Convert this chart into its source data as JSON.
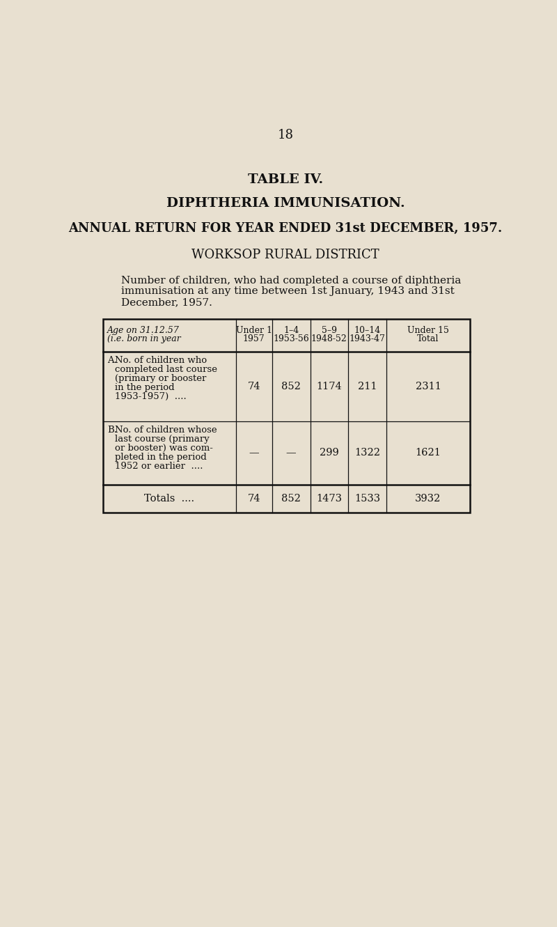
{
  "page_number": "18",
  "title1": "TABLE IV.",
  "title2": "DIPHTHERIA IMMUNISATION.",
  "title3": "ANNUAL RETURN FOR YEAR ENDED 31st DECEMBER, 1957.",
  "title4": "WORKSOP RURAL DISTRICT",
  "intro_line1": "Number of children, who had completed a course of diphtheria",
  "intro_line2": "immunisation at any time between 1st January, 1943 and 31st",
  "intro_line3": "December, 1957.",
  "bg_color": "#e8e0d0",
  "text_color": "#111111",
  "row_A_label": "A.",
  "row_A_lines": [
    "No. of children who",
    "completed last course",
    "(primary or booster",
    "in the period",
    "1953-1957)"
  ],
  "row_A_dots": "....",
  "row_A_values": [
    "74",
    "852",
    "1174",
    "211",
    "2311"
  ],
  "row_B_label": "B.",
  "row_B_lines": [
    "No. of children whose",
    "last course (primary",
    "or booster) was com-",
    "pleted in the period",
    "1952 or earlier"
  ],
  "row_B_dots": "....",
  "row_B_values": [
    "—",
    "—",
    "299",
    "1322",
    "1621"
  ],
  "totals_label": "Totals",
  "totals_dots": "....",
  "totals_values": [
    "74",
    "852",
    "1473",
    "1533",
    "3932"
  ],
  "col_h1": [
    "Under 1",
    "1–4",
    "5–9",
    "10–14",
    "Under 15"
  ],
  "col_h2": [
    "1957",
    "1953-56",
    "1948-52",
    "1943-47",
    "Total"
  ],
  "header_col0_l1": "Age on 31.12.57",
  "header_col0_l2": "(i.e. born in year",
  "lw_outer": 1.8,
  "lw_inner": 0.9
}
